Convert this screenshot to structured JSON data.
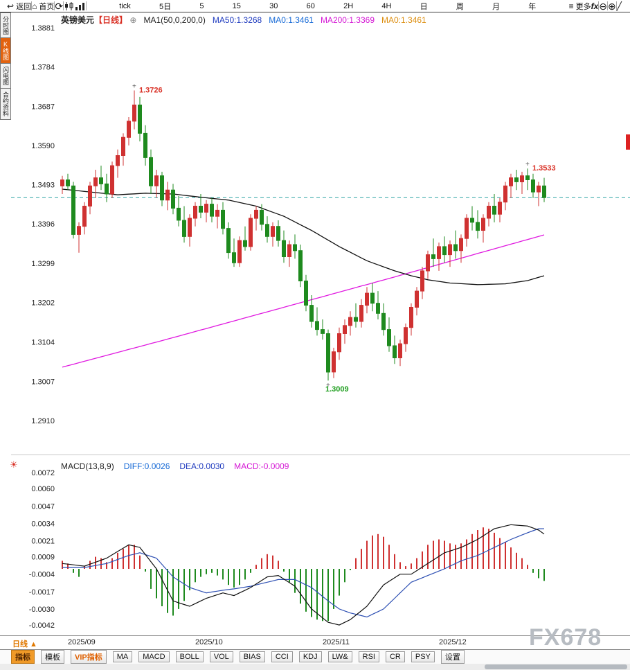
{
  "icons": {
    "back": "↩",
    "home": "⌂",
    "refresh": "⟳",
    "more": "≡",
    "zoom_out": "⊖",
    "zoom_in": "⊕",
    "draw": "╱",
    "expand": "⊕",
    "settings": "☀"
  },
  "toolbar": {
    "back": "返回",
    "home": "首页",
    "periods": [
      "tick",
      "5日",
      "5",
      "15",
      "30",
      "60",
      "2H",
      "4H",
      "日",
      "周",
      "月",
      "年"
    ],
    "more": "更多",
    "fx": "fx"
  },
  "sidebar": {
    "items": [
      {
        "label": "分时图",
        "active": false
      },
      {
        "label": "K线图",
        "active": true
      },
      {
        "label": "闪电图",
        "active": false
      },
      {
        "label": "合约资料",
        "active": false
      }
    ]
  },
  "header": {
    "instrument": "英镑美元",
    "period_tag": "【日线】",
    "ma_settings": "MA1(50,0,200,0)",
    "ma50": "MA50:1.3268",
    "ma0_first": "MA0:1.3461",
    "ma200": "MA200:1.3369",
    "ma0_second": "MA0:1.3461"
  },
  "macd_header": {
    "title": "MACD(13,8,9)",
    "diff": "DIFF:0.0026",
    "dea": "DEA:0.0030",
    "macd": "MACD:-0.0009"
  },
  "bottom": {
    "period_label": "日线 ▲",
    "tabs": [
      {
        "label": "指标",
        "variant": "active"
      },
      {
        "label": "模板",
        "variant": ""
      },
      {
        "label": "VIP指标",
        "variant": "vip"
      },
      {
        "label": "MA",
        "variant": ""
      },
      {
        "label": "MACD",
        "variant": ""
      },
      {
        "label": "BOLL",
        "variant": ""
      },
      {
        "label": "VOL",
        "variant": ""
      },
      {
        "label": "BIAS",
        "variant": ""
      },
      {
        "label": "CCI",
        "variant": ""
      },
      {
        "label": "KDJ",
        "variant": ""
      },
      {
        "label": "LW&",
        "variant": ""
      },
      {
        "label": "RSI",
        "variant": ""
      },
      {
        "label": "CR",
        "variant": ""
      },
      {
        "label": "PSY",
        "variant": ""
      },
      {
        "label": "设置",
        "variant": ""
      }
    ]
  },
  "watermark": "FX678",
  "chart_data": {
    "type": "candlestick",
    "title": "英镑美元 日线 (GBP/USD Daily)",
    "price_axis": {
      "max": 1.3881,
      "min": 1.291,
      "ticks": [
        "1.3881",
        "1.3784",
        "1.3687",
        "1.3590",
        "1.3493",
        "1.3396",
        "1.3299",
        "1.3202",
        "1.3104",
        "1.3007",
        "1.2910"
      ]
    },
    "current_price": 1.3461,
    "x_labels": [
      {
        "label": "2025/09",
        "index": 2
      },
      {
        "label": "2025/10",
        "index": 25
      },
      {
        "label": "2025/11",
        "index": 48
      },
      {
        "label": "2025/12",
        "index": 69
      }
    ],
    "colors": {
      "up": "#cf3131",
      "down": "#1e8a1e",
      "ma50": "#101010",
      "ma200": "#e019e0",
      "current_line": "#2fa3a3",
      "diff_line": "#101010",
      "dea_line": "#2d4fb3"
    },
    "candles": [
      [
        1.349,
        1.3515,
        1.347,
        1.3505
      ],
      [
        1.3505,
        1.352,
        1.348,
        1.349
      ],
      [
        1.349,
        1.35,
        1.336,
        1.337
      ],
      [
        1.337,
        1.34,
        1.3325,
        1.339
      ],
      [
        1.339,
        1.345,
        1.337,
        1.344
      ],
      [
        1.344,
        1.35,
        1.342,
        1.349
      ],
      [
        1.349,
        1.353,
        1.346,
        1.351
      ],
      [
        1.351,
        1.354,
        1.348,
        1.3495
      ],
      [
        1.3495,
        1.352,
        1.345,
        1.347
      ],
      [
        1.347,
        1.355,
        1.346,
        1.354
      ],
      [
        1.354,
        1.358,
        1.351,
        1.3565
      ],
      [
        1.3565,
        1.362,
        1.354,
        1.361
      ],
      [
        1.361,
        1.366,
        1.359,
        1.365
      ],
      [
        1.365,
        1.3726,
        1.363,
        1.369
      ],
      [
        1.369,
        1.371,
        1.36,
        1.362
      ],
      [
        1.362,
        1.364,
        1.354,
        1.356
      ],
      [
        1.356,
        1.358,
        1.347,
        1.349
      ],
      [
        1.349,
        1.353,
        1.346,
        1.3515
      ],
      [
        1.3515,
        1.3525,
        1.344,
        1.3455
      ],
      [
        1.3455,
        1.35,
        1.343,
        1.348
      ],
      [
        1.348,
        1.3495,
        1.342,
        1.3435
      ],
      [
        1.3435,
        1.3465,
        1.339,
        1.3405
      ],
      [
        1.3405,
        1.344,
        1.335,
        1.3365
      ],
      [
        1.3365,
        1.342,
        1.334,
        1.341
      ],
      [
        1.341,
        1.345,
        1.339,
        1.344
      ],
      [
        1.344,
        1.347,
        1.341,
        1.3425
      ],
      [
        1.3425,
        1.3455,
        1.34,
        1.3445
      ],
      [
        1.3445,
        1.346,
        1.34,
        1.3415
      ],
      [
        1.3415,
        1.3445,
        1.3385,
        1.343
      ],
      [
        1.343,
        1.345,
        1.337,
        1.3385
      ],
      [
        1.3385,
        1.34,
        1.331,
        1.3325
      ],
      [
        1.3325,
        1.336,
        1.329,
        1.33
      ],
      [
        1.33,
        1.3365,
        1.329,
        1.3355
      ],
      [
        1.3355,
        1.339,
        1.333,
        1.334
      ],
      [
        1.334,
        1.342,
        1.333,
        1.341
      ],
      [
        1.341,
        1.344,
        1.338,
        1.343
      ],
      [
        1.343,
        1.3445,
        1.338,
        1.3395
      ],
      [
        1.3395,
        1.3415,
        1.335,
        1.3365
      ],
      [
        1.3365,
        1.34,
        1.334,
        1.339
      ],
      [
        1.339,
        1.3405,
        1.334,
        1.3355
      ],
      [
        1.3355,
        1.338,
        1.33,
        1.3315
      ],
      [
        1.3315,
        1.3355,
        1.329,
        1.3345
      ],
      [
        1.3345,
        1.337,
        1.331,
        1.333
      ],
      [
        1.333,
        1.3345,
        1.324,
        1.3255
      ],
      [
        1.3255,
        1.327,
        1.318,
        1.3195
      ],
      [
        1.3195,
        1.322,
        1.314,
        1.3155
      ],
      [
        1.3155,
        1.319,
        1.312,
        1.3135
      ],
      [
        1.3135,
        1.316,
        1.311,
        1.3125
      ],
      [
        1.3125,
        1.3135,
        1.3009,
        1.303
      ],
      [
        1.303,
        1.309,
        1.3015,
        1.308
      ],
      [
        1.308,
        1.314,
        1.306,
        1.3125
      ],
      [
        1.3125,
        1.316,
        1.31,
        1.3145
      ],
      [
        1.3145,
        1.318,
        1.312,
        1.3165
      ],
      [
        1.3165,
        1.32,
        1.314,
        1.3155
      ],
      [
        1.3155,
        1.321,
        1.314,
        1.3195
      ],
      [
        1.3195,
        1.324,
        1.3175,
        1.3225
      ],
      [
        1.3225,
        1.325,
        1.318,
        1.32
      ],
      [
        1.32,
        1.323,
        1.316,
        1.3175
      ],
      [
        1.3175,
        1.32,
        1.312,
        1.3135
      ],
      [
        1.3135,
        1.3165,
        1.308,
        1.3095
      ],
      [
        1.3095,
        1.312,
        1.305,
        1.3065
      ],
      [
        1.3065,
        1.311,
        1.3045,
        1.31
      ],
      [
        1.31,
        1.315,
        1.308,
        1.314
      ],
      [
        1.314,
        1.32,
        1.312,
        1.319
      ],
      [
        1.319,
        1.324,
        1.317,
        1.323
      ],
      [
        1.323,
        1.329,
        1.321,
        1.328
      ],
      [
        1.328,
        1.333,
        1.326,
        1.332
      ],
      [
        1.332,
        1.336,
        1.329,
        1.331
      ],
      [
        1.331,
        1.335,
        1.328,
        1.334
      ],
      [
        1.334,
        1.3365,
        1.33,
        1.332
      ],
      [
        1.332,
        1.3355,
        1.329,
        1.3345
      ],
      [
        1.3345,
        1.338,
        1.331,
        1.333
      ],
      [
        1.333,
        1.337,
        1.33,
        1.336
      ],
      [
        1.336,
        1.342,
        1.334,
        1.341
      ],
      [
        1.341,
        1.344,
        1.338,
        1.34
      ],
      [
        1.34,
        1.343,
        1.336,
        1.338
      ],
      [
        1.338,
        1.342,
        1.335,
        1.341
      ],
      [
        1.341,
        1.345,
        1.339,
        1.344
      ],
      [
        1.344,
        1.347,
        1.34,
        1.342
      ],
      [
        1.342,
        1.346,
        1.34,
        1.345
      ],
      [
        1.345,
        1.35,
        1.343,
        1.349
      ],
      [
        1.349,
        1.352,
        1.346,
        1.351
      ],
      [
        1.351,
        1.353,
        1.348,
        1.35
      ],
      [
        1.35,
        1.3525,
        1.347,
        1.3515
      ],
      [
        1.3515,
        1.3533,
        1.348,
        1.3505
      ],
      [
        1.3505,
        1.352,
        1.346,
        1.3475
      ],
      [
        1.3475,
        1.35,
        1.344,
        1.349
      ],
      [
        1.349,
        1.351,
        1.345,
        1.3461
      ]
    ],
    "ma50_points": [
      [
        0,
        1.3482
      ],
      [
        5,
        1.3475
      ],
      [
        10,
        1.3468
      ],
      [
        15,
        1.3472
      ],
      [
        20,
        1.347
      ],
      [
        25,
        1.3462
      ],
      [
        30,
        1.3455
      ],
      [
        35,
        1.344
      ],
      [
        40,
        1.3415
      ],
      [
        45,
        1.338
      ],
      [
        50,
        1.334
      ],
      [
        55,
        1.3305
      ],
      [
        60,
        1.328
      ],
      [
        63,
        1.3268
      ],
      [
        66,
        1.3258
      ],
      [
        70,
        1.325
      ],
      [
        75,
        1.3246
      ],
      [
        80,
        1.3248
      ],
      [
        84,
        1.3256
      ],
      [
        87,
        1.3268
      ]
    ],
    "ma200_points": [
      [
        0,
        1.3042
      ],
      [
        20,
        1.3115
      ],
      [
        40,
        1.319
      ],
      [
        60,
        1.3265
      ],
      [
        75,
        1.3323
      ],
      [
        87,
        1.3369
      ]
    ],
    "annotations": [
      {
        "index": 13,
        "price": 1.3726,
        "label": "1.3726",
        "color": "#d93025",
        "pos": "above"
      },
      {
        "index": 48,
        "price": 1.3009,
        "label": "1.3009",
        "color": "#1e9e1e",
        "pos": "below"
      },
      {
        "index": 84,
        "price": 1.3533,
        "label": "1.3533",
        "color": "#d93025",
        "pos": "above"
      }
    ],
    "macd": {
      "params": "MACD(13,8,9)",
      "diff": 0.0026,
      "dea": 0.003,
      "macd": -0.0009,
      "axis_ticks": [
        "0.0072",
        "0.0060",
        "0.0047",
        "0.0034",
        "0.0021",
        "0.0009",
        "-0.0004",
        "-0.0017",
        "-0.0030",
        "-0.0042"
      ],
      "hist": [
        0.0006,
        0.0004,
        -0.0003,
        -0.0006,
        0.0002,
        0.0006,
        0.0009,
        0.0008,
        0.0005,
        0.0008,
        0.0012,
        0.0015,
        0.0018,
        0.0018,
        0.001,
        -0.0002,
        -0.0015,
        -0.0022,
        -0.0028,
        -0.0033,
        -0.0035,
        -0.003,
        -0.0024,
        -0.0016,
        -0.001,
        -0.0006,
        -0.0004,
        -0.0003,
        -0.0005,
        -0.0008,
        -0.0012,
        -0.0014,
        -0.0012,
        -0.0008,
        -0.0003,
        0.0003,
        0.0008,
        0.0011,
        0.001,
        0.0006,
        -0.0002,
        -0.001,
        -0.0018,
        -0.0026,
        -0.0032,
        -0.0036,
        -0.0038,
        -0.0039,
        -0.0039,
        -0.003,
        -0.002,
        -0.001,
        -0.0001,
        0.0008,
        0.0015,
        0.0021,
        0.0025,
        0.0026,
        0.0024,
        0.0018,
        0.0011,
        0.0005,
        0.0002,
        0.0004,
        0.0008,
        0.0013,
        0.0018,
        0.0021,
        0.0022,
        0.0021,
        0.0019,
        0.0018,
        0.0019,
        0.0022,
        0.0026,
        0.0029,
        0.0031,
        0.003,
        0.0027,
        0.0023,
        0.002,
        0.0016,
        0.0012,
        0.0008,
        0.0003,
        -0.0003,
        -0.0007,
        -0.0009
      ],
      "diff_points": [
        [
          0,
          0.0004
        ],
        [
          4,
          0.0002
        ],
        [
          8,
          0.0008
        ],
        [
          12,
          0.0018
        ],
        [
          14,
          0.0016
        ],
        [
          17,
          0.0
        ],
        [
          20,
          -0.0024
        ],
        [
          23,
          -0.0028
        ],
        [
          26,
          -0.0022
        ],
        [
          29,
          -0.0018
        ],
        [
          31,
          -0.002
        ],
        [
          34,
          -0.0014
        ],
        [
          37,
          -0.0006
        ],
        [
          39,
          -0.0005
        ],
        [
          42,
          -0.0013
        ],
        [
          45,
          -0.003
        ],
        [
          48,
          -0.004
        ],
        [
          50,
          -0.0042
        ],
        [
          52,
          -0.0038
        ],
        [
          55,
          -0.0028
        ],
        [
          58,
          -0.0012
        ],
        [
          61,
          -0.0004
        ],
        [
          63,
          -0.0004
        ],
        [
          66,
          0.0004
        ],
        [
          69,
          0.0012
        ],
        [
          72,
          0.0016
        ],
        [
          75,
          0.0022
        ],
        [
          78,
          0.003
        ],
        [
          81,
          0.0033
        ],
        [
          84,
          0.0032
        ],
        [
          86,
          0.0029
        ],
        [
          87,
          0.0026
        ]
      ],
      "dea_points": [
        [
          0,
          0.0001
        ],
        [
          4,
          0.0001
        ],
        [
          8,
          0.0004
        ],
        [
          12,
          0.001
        ],
        [
          14,
          0.0012
        ],
        [
          17,
          0.0008
        ],
        [
          20,
          -0.0006
        ],
        [
          23,
          -0.0014
        ],
        [
          26,
          -0.0018
        ],
        [
          29,
          -0.0016
        ],
        [
          31,
          -0.0015
        ],
        [
          34,
          -0.0013
        ],
        [
          37,
          -0.001
        ],
        [
          39,
          -0.0008
        ],
        [
          42,
          -0.0008
        ],
        [
          45,
          -0.0014
        ],
        [
          48,
          -0.0024
        ],
        [
          50,
          -0.003
        ],
        [
          52,
          -0.0033
        ],
        [
          55,
          -0.0036
        ],
        [
          58,
          -0.003
        ],
        [
          61,
          -0.0018
        ],
        [
          63,
          -0.001
        ],
        [
          66,
          -0.0005
        ],
        [
          69,
          0.0
        ],
        [
          72,
          0.0006
        ],
        [
          75,
          0.001
        ],
        [
          78,
          0.0016
        ],
        [
          81,
          0.0022
        ],
        [
          84,
          0.0027
        ],
        [
          86,
          0.003
        ],
        [
          87,
          0.003
        ]
      ]
    }
  }
}
